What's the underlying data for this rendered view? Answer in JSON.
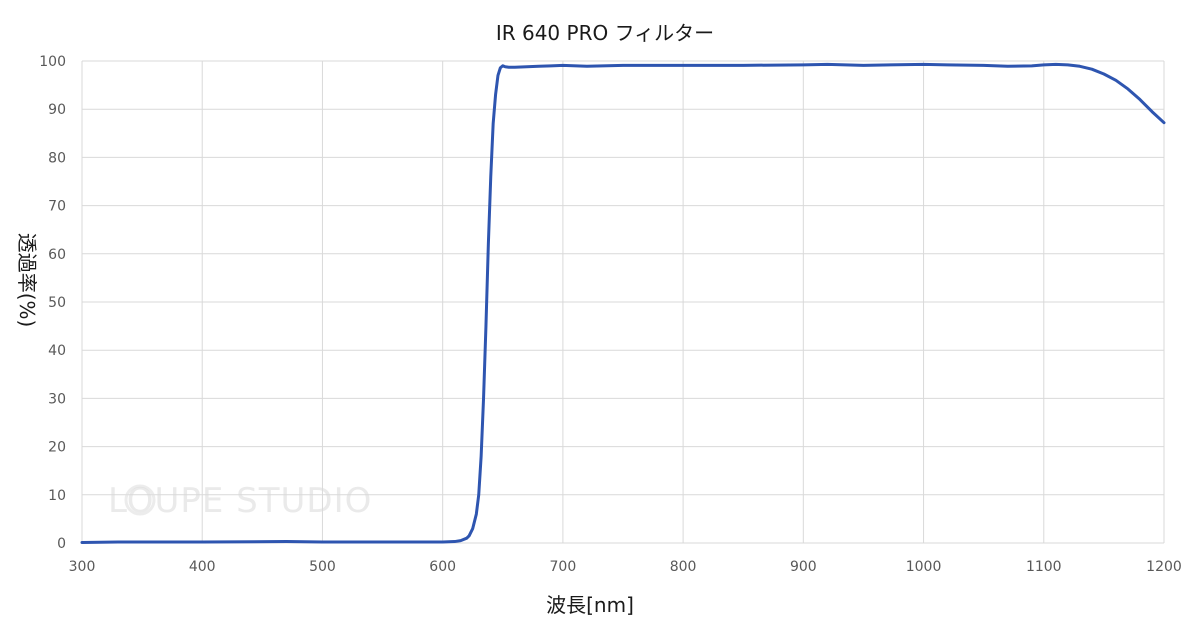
{
  "chart_data": {
    "type": "line",
    "title": "IR 640 PRO フィルター",
    "xlabel": "波長[nm]",
    "ylabel": "透過率(%)",
    "xlim": [
      300,
      1200
    ],
    "ylim": [
      0,
      100
    ],
    "x_ticks": [
      300,
      400,
      500,
      600,
      700,
      800,
      900,
      1000,
      1100,
      1200
    ],
    "y_ticks": [
      0,
      10,
      20,
      30,
      40,
      50,
      60,
      70,
      80,
      90,
      100
    ],
    "grid": true,
    "legend": "none",
    "series": [
      {
        "color": "#2e55b0",
        "x": [
          300,
          330,
          400,
          470,
          500,
          550,
          600,
          610,
          615,
          620,
          622,
          625,
          628,
          630,
          632,
          634,
          636,
          638,
          640,
          642,
          644,
          646,
          648,
          650,
          652,
          655,
          660,
          670,
          680,
          690,
          700,
          720,
          750,
          800,
          850,
          900,
          920,
          950,
          1000,
          1020,
          1050,
          1070,
          1090,
          1100,
          1110,
          1120,
          1130,
          1140,
          1150,
          1160,
          1170,
          1180,
          1190,
          1200
        ],
        "y": [
          0.1,
          0.2,
          0.2,
          0.3,
          0.2,
          0.2,
          0.2,
          0.3,
          0.5,
          1,
          1.5,
          3,
          6,
          10,
          18,
          30,
          45,
          62,
          76,
          87,
          93,
          97,
          98.6,
          99,
          98.8,
          98.7,
          98.7,
          98.8,
          98.9,
          99,
          99.1,
          98.9,
          99.1,
          99.1,
          99.1,
          99.2,
          99.3,
          99.1,
          99.3,
          99.2,
          99.1,
          98.9,
          99,
          99.2,
          99.3,
          99.2,
          98.9,
          98.3,
          97.3,
          96,
          94.2,
          92,
          89.5,
          87.2
        ]
      }
    ],
    "watermark": "LOUPE STUDIO"
  }
}
